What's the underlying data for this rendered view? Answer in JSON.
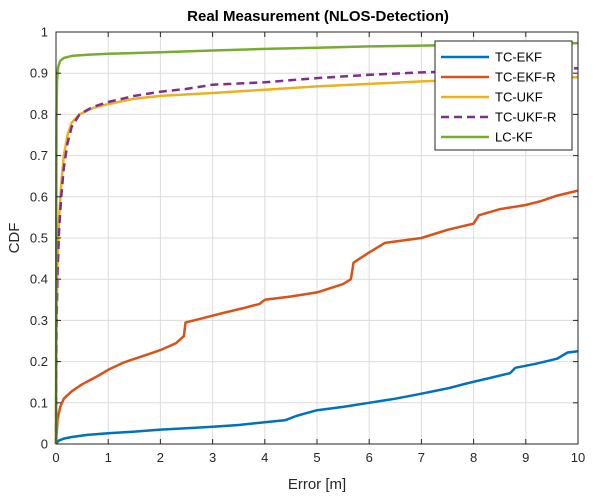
{
  "chart_data": {
    "type": "line",
    "title": "Real Measurement (NLOS-Detection)",
    "xlabel": "Error [m]",
    "ylabel": "CDF",
    "xlim": [
      0,
      10
    ],
    "ylim": [
      0,
      1
    ],
    "xticks": [
      "0",
      "1",
      "2",
      "3",
      "4",
      "5",
      "6",
      "7",
      "8",
      "9",
      "10"
    ],
    "yticks": [
      "0",
      "0.1",
      "0.2",
      "0.3",
      "0.4",
      "0.5",
      "0.6",
      "0.7",
      "0.8",
      "0.9",
      "1"
    ],
    "grid": true,
    "legend_position": "top-right",
    "series": [
      {
        "name": "TC-EKF",
        "color": "#0072BD",
        "dash": "solid",
        "points": [
          [
            0,
            0
          ],
          [
            0.05,
            0.008
          ],
          [
            0.15,
            0.013
          ],
          [
            0.3,
            0.017
          ],
          [
            0.6,
            0.022
          ],
          [
            1,
            0.026
          ],
          [
            1.5,
            0.03
          ],
          [
            2,
            0.035
          ],
          [
            2.5,
            0.038
          ],
          [
            3,
            0.042
          ],
          [
            3.5,
            0.046
          ],
          [
            4,
            0.053
          ],
          [
            4.4,
            0.058
          ],
          [
            4.6,
            0.068
          ],
          [
            4.8,
            0.075
          ],
          [
            5,
            0.082
          ],
          [
            5.5,
            0.09
          ],
          [
            6,
            0.1
          ],
          [
            6.5,
            0.11
          ],
          [
            7,
            0.122
          ],
          [
            7.5,
            0.135
          ],
          [
            7.9,
            0.148
          ],
          [
            8.3,
            0.16
          ],
          [
            8.7,
            0.172
          ],
          [
            8.8,
            0.185
          ],
          [
            9.2,
            0.195
          ],
          [
            9.6,
            0.207
          ],
          [
            9.8,
            0.222
          ],
          [
            10,
            0.225
          ]
        ]
      },
      {
        "name": "TC-EKF-R",
        "color": "#D95319",
        "dash": "solid",
        "points": [
          [
            0,
            0
          ],
          [
            0.03,
            0.06
          ],
          [
            0.08,
            0.09
          ],
          [
            0.15,
            0.11
          ],
          [
            0.3,
            0.128
          ],
          [
            0.5,
            0.145
          ],
          [
            0.8,
            0.165
          ],
          [
            1,
            0.18
          ],
          [
            1.3,
            0.198
          ],
          [
            1.7,
            0.215
          ],
          [
            2,
            0.228
          ],
          [
            2.3,
            0.245
          ],
          [
            2.45,
            0.262
          ],
          [
            2.48,
            0.295
          ],
          [
            2.8,
            0.305
          ],
          [
            3.2,
            0.318
          ],
          [
            3.6,
            0.33
          ],
          [
            3.9,
            0.34
          ],
          [
            4,
            0.35
          ],
          [
            4.5,
            0.358
          ],
          [
            5,
            0.368
          ],
          [
            5.5,
            0.388
          ],
          [
            5.65,
            0.4
          ],
          [
            5.7,
            0.44
          ],
          [
            6,
            0.465
          ],
          [
            6.3,
            0.488
          ],
          [
            7,
            0.5
          ],
          [
            7.5,
            0.52
          ],
          [
            8,
            0.535
          ],
          [
            8.1,
            0.555
          ],
          [
            8.5,
            0.57
          ],
          [
            9,
            0.58
          ],
          [
            9.3,
            0.59
          ],
          [
            9.6,
            0.603
          ],
          [
            10,
            0.615
          ]
        ]
      },
      {
        "name": "TC-UKF",
        "color": "#EDB120",
        "dash": "solid",
        "points": [
          [
            0,
            0
          ],
          [
            0.01,
            0.3
          ],
          [
            0.03,
            0.45
          ],
          [
            0.06,
            0.55
          ],
          [
            0.1,
            0.63
          ],
          [
            0.15,
            0.7
          ],
          [
            0.22,
            0.75
          ],
          [
            0.3,
            0.78
          ],
          [
            0.45,
            0.8
          ],
          [
            0.7,
            0.815
          ],
          [
            1,
            0.825
          ],
          [
            1.5,
            0.838
          ],
          [
            2,
            0.845
          ],
          [
            3,
            0.852
          ],
          [
            4,
            0.86
          ],
          [
            5,
            0.868
          ],
          [
            6,
            0.874
          ],
          [
            7,
            0.88
          ],
          [
            8,
            0.885
          ],
          [
            9,
            0.888
          ],
          [
            10,
            0.89
          ]
        ]
      },
      {
        "name": "TC-UKF-R",
        "color": "#7E2F8E",
        "dash": "dashed",
        "points": [
          [
            0,
            0
          ],
          [
            0.01,
            0.28
          ],
          [
            0.03,
            0.42
          ],
          [
            0.06,
            0.52
          ],
          [
            0.1,
            0.6
          ],
          [
            0.15,
            0.67
          ],
          [
            0.22,
            0.73
          ],
          [
            0.3,
            0.77
          ],
          [
            0.45,
            0.8
          ],
          [
            0.7,
            0.818
          ],
          [
            1,
            0.83
          ],
          [
            1.5,
            0.845
          ],
          [
            2,
            0.855
          ],
          [
            2.5,
            0.862
          ],
          [
            3,
            0.872
          ],
          [
            4,
            0.878
          ],
          [
            5,
            0.888
          ],
          [
            6,
            0.896
          ],
          [
            7,
            0.902
          ],
          [
            8,
            0.906
          ],
          [
            9,
            0.91
          ],
          [
            10,
            0.912
          ]
        ]
      },
      {
        "name": "LC-KF",
        "color": "#77AC30",
        "dash": "solid",
        "points": [
          [
            0,
            0
          ],
          [
            0.005,
            0.55
          ],
          [
            0.01,
            0.78
          ],
          [
            0.02,
            0.88
          ],
          [
            0.04,
            0.915
          ],
          [
            0.08,
            0.93
          ],
          [
            0.15,
            0.937
          ],
          [
            0.3,
            0.942
          ],
          [
            0.6,
            0.945
          ],
          [
            1,
            0.947
          ],
          [
            2,
            0.951
          ],
          [
            3,
            0.955
          ],
          [
            4,
            0.959
          ],
          [
            5,
            0.962
          ],
          [
            6,
            0.965
          ],
          [
            7,
            0.967
          ],
          [
            8,
            0.969
          ],
          [
            9,
            0.971
          ],
          [
            10,
            0.973
          ]
        ]
      }
    ]
  }
}
